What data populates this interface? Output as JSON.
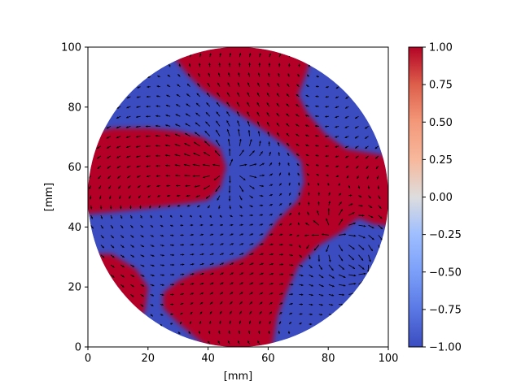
{
  "chart_data": {
    "type": "heatmap",
    "title": "",
    "xlabel": "[mm]",
    "ylabel": "[mm]",
    "xlim": [
      0,
      100
    ],
    "ylim": [
      0,
      100
    ],
    "x_ticks": [
      "0",
      "20",
      "40",
      "60",
      "80",
      "100"
    ],
    "y_ticks": [
      "0",
      "20",
      "40",
      "60",
      "80",
      "100"
    ],
    "grid": false,
    "domain_shape": "circle",
    "domain_center": [
      50,
      50
    ],
    "domain_radius": 50,
    "colormap": "coolwarm",
    "colors": {
      "low": "#3b4cc0",
      "mid": "#dddddd",
      "high": "#b40426"
    },
    "colorbar": {
      "range": [
        -1.0,
        1.0
      ],
      "ticks": [
        "1.00",
        "0.75",
        "0.50",
        "0.25",
        "0.00",
        "−0.25",
        "−0.50",
        "−0.75",
        "−1.00"
      ]
    },
    "regions_value_plus_one": [
      {
        "name": "top-center band",
        "center": [
          55,
          88
        ]
      },
      {
        "name": "left lobe",
        "center": [
          20,
          57
        ]
      },
      {
        "name": "right band",
        "center": [
          85,
          52
        ]
      },
      {
        "name": "lower-center band",
        "center": [
          50,
          18
        ]
      },
      {
        "name": "bottom-left corner",
        "center": [
          10,
          20
        ]
      }
    ],
    "regions_value_minus_one": [
      {
        "name": "top-left",
        "center": [
          30,
          82
        ]
      },
      {
        "name": "top-right",
        "center": [
          84,
          85
        ]
      },
      {
        "name": "center",
        "center": [
          45,
          40
        ]
      },
      {
        "name": "lower-right",
        "center": [
          78,
          25
        ]
      }
    ],
    "vector_field": {
      "type": "quiver",
      "color": "#000000",
      "singular_points": [
        {
          "x": 82,
          "y": 37,
          "kind": "source"
        },
        {
          "x": 93,
          "y": 25,
          "kind": "sink"
        },
        {
          "x": 47,
          "y": 60,
          "kind": "source"
        }
      ]
    }
  }
}
